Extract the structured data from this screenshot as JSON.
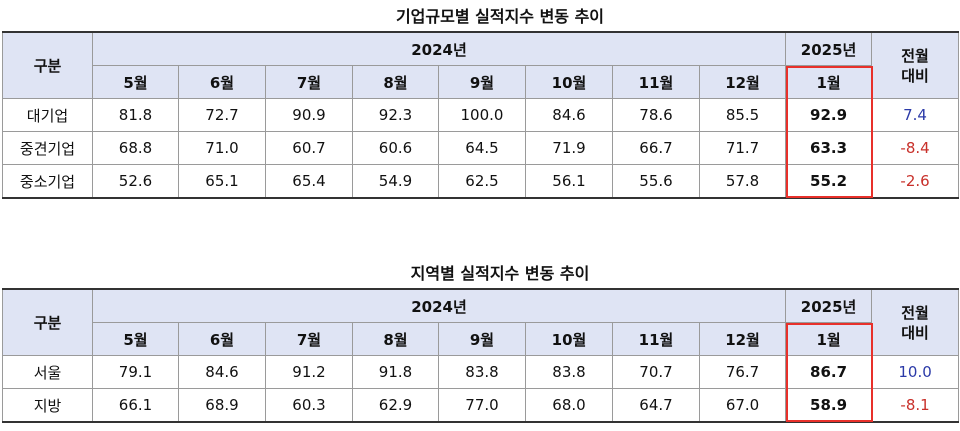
{
  "tables": [
    {
      "title": "기업규모별 실적지수 변동 추이",
      "header": {
        "corner": "구분",
        "year_prev": "2024년",
        "year_cur": "2025년",
        "change": "전월\n대비"
      },
      "months": [
        "5월",
        "6월",
        "7월",
        "8월",
        "9월",
        "10월",
        "11월",
        "12월",
        "1월"
      ],
      "rows": [
        [
          "대기업",
          "81.8",
          "72.7",
          "90.9",
          "92.3",
          "100.0",
          "84.6",
          "78.6",
          "85.5",
          "92.9",
          "7.4"
        ],
        [
          "중견기업",
          "68.8",
          "71.0",
          "60.7",
          "60.6",
          "64.5",
          "71.9",
          "66.7",
          "71.7",
          "63.3",
          "-8.4"
        ],
        [
          "중소기업",
          "52.6",
          "65.1",
          "65.4",
          "54.9",
          "62.5",
          "56.1",
          "55.6",
          "57.8",
          "55.2",
          "-2.6"
        ]
      ]
    },
    {
      "title": "지역별 실적지수 변동 추이",
      "header": {
        "corner": "구분",
        "year_prev": "2024년",
        "year_cur": "2025년",
        "change": "전월\n대비"
      },
      "months": [
        "5월",
        "6월",
        "7월",
        "8월",
        "9월",
        "10월",
        "11월",
        "12월",
        "1월"
      ],
      "rows": [
        [
          "서울",
          "79.1",
          "84.6",
          "91.2",
          "91.8",
          "83.8",
          "83.8",
          "70.7",
          "76.7",
          "86.7",
          "10.0"
        ],
        [
          "지방",
          "66.1",
          "68.9",
          "60.3",
          "62.9",
          "77.0",
          "68.0",
          "64.7",
          "67.0",
          "58.9",
          "-8.1"
        ]
      ]
    }
  ]
}
